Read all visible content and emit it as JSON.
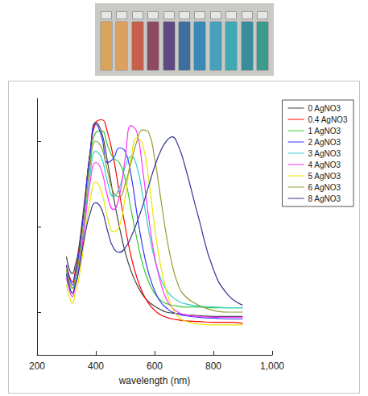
{
  "chart_data": {
    "type": "line",
    "x_label": "wavelength (nm)",
    "xlim": [
      200,
      1000
    ],
    "xticks": [
      200,
      400,
      600,
      800,
      1000
    ],
    "ylim": [
      0,
      3
    ],
    "yticks": [
      0.5,
      1.5,
      2.5
    ],
    "tick_labels": "x",
    "grid": false,
    "legend": "right",
    "x": [
      300,
      310,
      320,
      330,
      340,
      360,
      380,
      400,
      420,
      440,
      460,
      480,
      500,
      520,
      540,
      560,
      580,
      600,
      620,
      640,
      660,
      680,
      700,
      750,
      800,
      850,
      900
    ],
    "series": [
      {
        "name": "0 AgNO3",
        "color": "#404040",
        "values": [
          1.15,
          1.0,
          0.95,
          1.05,
          1.2,
          1.75,
          2.35,
          2.72,
          2.6,
          2.25,
          1.85,
          1.5,
          1.2,
          0.98,
          0.82,
          0.7,
          0.62,
          0.57,
          0.53,
          0.5,
          0.49,
          0.48,
          0.47,
          0.46,
          0.45,
          0.45,
          0.45
        ]
      },
      {
        "name": "0.4 AgNO3",
        "color": "#ff0000",
        "values": [
          1.05,
          0.92,
          0.85,
          0.98,
          1.15,
          1.7,
          2.35,
          2.72,
          2.75,
          2.6,
          2.3,
          1.9,
          1.5,
          1.15,
          0.9,
          0.72,
          0.6,
          0.52,
          0.47,
          0.44,
          0.42,
          0.41,
          0.4,
          0.39,
          0.38,
          0.38,
          0.37
        ]
      },
      {
        "name": "1 AgNO3",
        "color": "#33cc33",
        "values": [
          1.0,
          0.85,
          0.78,
          0.92,
          1.1,
          1.65,
          2.25,
          2.6,
          2.62,
          2.45,
          2.3,
          2.25,
          2.05,
          1.7,
          1.35,
          1.05,
          0.85,
          0.72,
          0.64,
          0.6,
          0.58,
          0.57,
          0.56,
          0.56,
          0.55,
          0.55,
          0.55
        ]
      },
      {
        "name": "2 AgNO3",
        "color": "#3333ff",
        "values": [
          1.05,
          0.9,
          0.82,
          0.95,
          1.12,
          1.7,
          2.35,
          2.7,
          2.55,
          2.25,
          2.3,
          2.42,
          2.38,
          2.1,
          1.65,
          1.25,
          0.95,
          0.75,
          0.62,
          0.55,
          0.5,
          0.48,
          0.46,
          0.44,
          0.43,
          0.42,
          0.42
        ]
      },
      {
        "name": "3 AgNO3",
        "color": "#33cccc",
        "values": [
          0.95,
          0.8,
          0.72,
          0.85,
          1.0,
          1.5,
          2.1,
          2.38,
          2.3,
          2.02,
          1.85,
          1.95,
          2.2,
          2.32,
          2.2,
          1.85,
          1.45,
          1.12,
          0.9,
          0.76,
          0.68,
          0.63,
          0.6,
          0.57,
          0.56,
          0.55,
          0.55
        ]
      },
      {
        "name": "4 AgNO3",
        "color": "#ff33ff",
        "values": [
          0.9,
          0.76,
          0.68,
          0.8,
          0.95,
          1.45,
          2.0,
          2.25,
          2.15,
          1.85,
          1.7,
          1.85,
          2.3,
          2.68,
          2.6,
          2.15,
          1.6,
          1.15,
          0.85,
          0.65,
          0.55,
          0.5,
          0.47,
          0.45,
          0.44,
          0.44,
          0.44
        ]
      },
      {
        "name": "5 AgNO3",
        "color": "#e6e600",
        "values": [
          0.82,
          0.68,
          0.6,
          0.72,
          0.85,
          1.3,
          1.8,
          2.02,
          1.9,
          1.6,
          1.44,
          1.5,
          1.85,
          2.3,
          2.54,
          2.45,
          2.05,
          1.5,
          1.05,
          0.75,
          0.55,
          0.45,
          0.4,
          0.36,
          0.35,
          0.35,
          0.35
        ]
      },
      {
        "name": "6 AgNO3",
        "color": "#999933",
        "values": [
          1.0,
          0.85,
          0.78,
          0.9,
          1.05,
          1.6,
          2.2,
          2.5,
          2.42,
          2.15,
          1.9,
          1.85,
          2.0,
          2.25,
          2.5,
          2.63,
          2.6,
          2.3,
          1.85,
          1.4,
          1.05,
          0.82,
          0.7,
          0.58,
          0.52,
          0.5,
          0.5
        ]
      },
      {
        "name": "8 AgNO3",
        "color": "#333399",
        "values": [
          0.95,
          0.8,
          0.72,
          0.82,
          0.95,
          1.35,
          1.65,
          1.78,
          1.7,
          1.45,
          1.25,
          1.2,
          1.25,
          1.38,
          1.55,
          1.75,
          1.98,
          2.2,
          2.38,
          2.5,
          2.55,
          2.45,
          2.25,
          1.6,
          1.0,
          0.7,
          0.58
        ]
      }
    ]
  }
}
